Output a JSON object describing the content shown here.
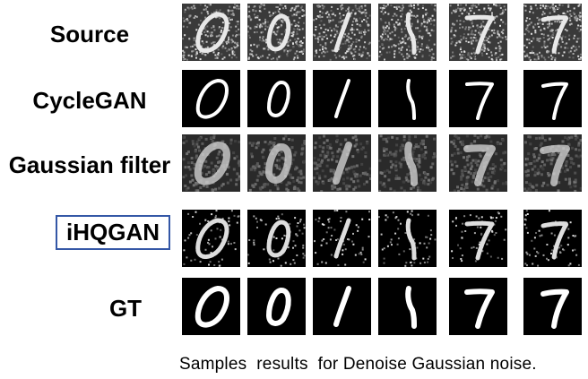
{
  "figure": {
    "rows": [
      {
        "label": "Source",
        "boxed": false,
        "style": "noisy"
      },
      {
        "label": "CycleGAN",
        "boxed": false,
        "style": "clean-thin"
      },
      {
        "label": "Gaussian filter",
        "boxed": false,
        "style": "blurred"
      },
      {
        "label": "iHQGAN",
        "boxed": true,
        "style": "speckled"
      },
      {
        "label": "GT",
        "boxed": false,
        "style": "clean"
      }
    ],
    "digits": [
      "0",
      "0",
      "1",
      "1",
      "7",
      "7"
    ],
    "caption": "Samples  results  for Denoise Gaussian noise."
  }
}
